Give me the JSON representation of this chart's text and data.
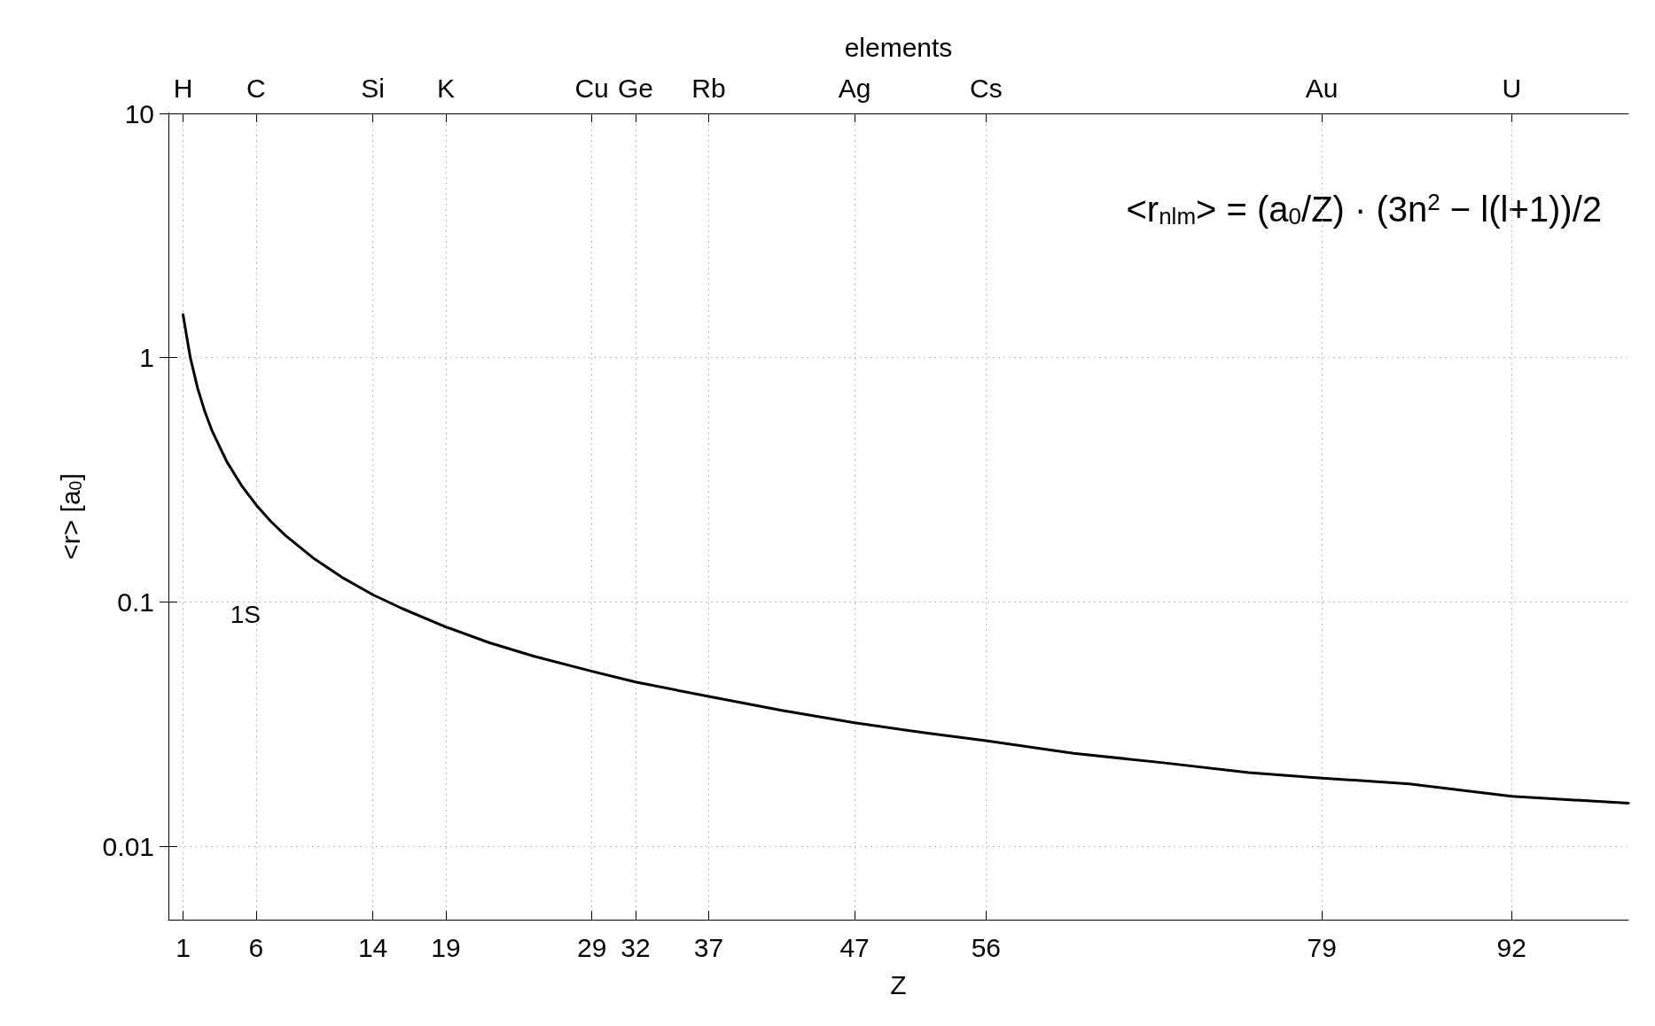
{
  "chart_data": {
    "type": "line",
    "xlabel": "Z",
    "ylabel": "<r> [a$_{0}$]",
    "x2label": "elements",
    "annotations": [
      "<r$_{nlm}$> = (a$_{0}$/Z) · (3n$^{2}$ − l(l+1))/2",
      {
        "text": "H",
        "x": 1
      },
      {
        "text": "C",
        "x": 6
      },
      {
        "text": "Si",
        "x": 14
      },
      {
        "text": "K",
        "x": 19
      },
      {
        "text": "Cu",
        "x": 29
      },
      {
        "text": "Ge",
        "x": 32
      },
      {
        "text": "Rb",
        "x": 37
      },
      {
        "text": "Ag",
        "x": 47
      },
      {
        "text": "Cs",
        "x": 56
      },
      {
        "text": "Au",
        "x": 79
      },
      {
        "text": "U",
        "x": 92
      }
    ],
    "x": [
      1,
      1.5,
      2,
      2.5,
      3,
      4,
      5,
      6,
      7,
      8,
      10,
      12,
      14,
      16,
      19,
      22,
      25,
      29,
      32,
      37,
      42,
      47,
      52,
      56,
      62,
      68,
      74,
      79,
      85,
      92,
      100
    ],
    "series": [
      {
        "name": "1S",
        "color": "#000000",
        "values": [
          1.5,
          1,
          0.75,
          0.6,
          0.5,
          0.375,
          0.3,
          0.25,
          0.214,
          0.1875,
          0.15,
          0.125,
          0.107,
          0.094,
          0.079,
          0.068,
          0.06,
          0.052,
          0.047,
          0.041,
          0.036,
          0.032,
          0.029,
          0.027,
          0.024,
          0.022,
          0.02,
          0.019,
          0.018,
          0.016,
          0.015
        ]
      }
    ],
    "xlim": [
      0,
      100
    ],
    "xticks": [
      1,
      6,
      14,
      19,
      29,
      32,
      37,
      47,
      56,
      79,
      92
    ],
    "ylim": [
      0.005,
      10
    ],
    "yticks": [
      0.01,
      0.1,
      1,
      10
    ],
    "log": "y",
    "grid": true,
    "marker": "none",
    "line_style": "solid",
    "legend": false
  }
}
